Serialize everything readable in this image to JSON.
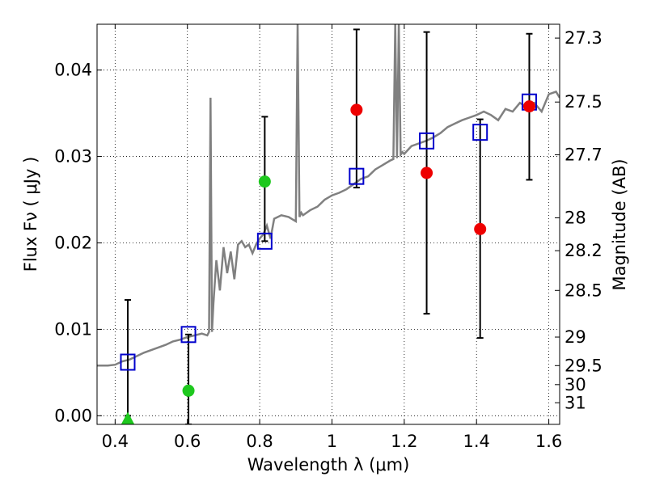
{
  "chart_data": {
    "type": "scatter",
    "xlabel": "Wavelength  λ (μm)",
    "ylabel": "Flux  Fν  ( μJy )",
    "y2label": "Magnitude (AB)",
    "xlim": [
      0.35,
      1.63
    ],
    "ylim": [
      -0.001,
      0.0453
    ],
    "grid": true,
    "x_ticks": [
      0.4,
      0.6,
      0.8,
      1.0,
      1.2,
      1.4,
      1.6
    ],
    "x_tick_labels": [
      "0.4",
      "0.6",
      "0.8",
      "1",
      "1.2",
      "1.4",
      "1.6"
    ],
    "y_ticks": [
      0.0,
      0.01,
      0.02,
      0.03,
      0.04
    ],
    "y_tick_labels": [
      "0.00",
      "0.01",
      "0.02",
      "0.03",
      "0.04"
    ],
    "mag_ticks": [
      {
        "label": "27.3",
        "flux": 0.0437
      },
      {
        "label": "27.5",
        "flux": 0.0363
      },
      {
        "label": "27.7",
        "flux": 0.0302
      },
      {
        "label": "28",
        "flux": 0.0229
      },
      {
        "label": "28.2",
        "flux": 0.0191
      },
      {
        "label": "28.5",
        "flux": 0.0145
      },
      {
        "label": "29",
        "flux": 0.0091
      },
      {
        "label": "29.5",
        "flux": 0.0058
      },
      {
        "label": "30",
        "flux": 0.0036
      },
      {
        "label": "31",
        "flux": 0.0015
      }
    ],
    "series": [
      {
        "type": "line",
        "color": "#808080",
        "x": [
          0.35,
          0.38,
          0.4,
          0.42,
          0.44,
          0.46,
          0.48,
          0.5,
          0.52,
          0.54,
          0.56,
          0.58,
          0.6,
          0.62,
          0.64,
          0.655,
          0.66,
          0.664,
          0.668,
          0.672,
          0.676,
          0.68,
          0.69,
          0.7,
          0.71,
          0.72,
          0.73,
          0.74,
          0.75,
          0.76,
          0.77,
          0.78,
          0.79,
          0.8,
          0.81,
          0.82,
          0.83,
          0.84,
          0.86,
          0.88,
          0.9,
          0.905,
          0.91,
          0.915,
          0.92,
          0.94,
          0.96,
          0.98,
          1.0,
          1.02,
          1.04,
          1.06,
          1.08,
          1.1,
          1.12,
          1.14,
          1.16,
          1.17,
          1.175,
          1.18,
          1.185,
          1.19,
          1.195,
          1.2,
          1.22,
          1.24,
          1.26,
          1.28,
          1.3,
          1.32,
          1.34,
          1.36,
          1.38,
          1.4,
          1.42,
          1.44,
          1.46,
          1.48,
          1.5,
          1.52,
          1.54,
          1.56,
          1.58,
          1.6,
          1.62,
          1.63
        ],
        "y": [
          0.0058,
          0.0058,
          0.0059,
          0.0063,
          0.0065,
          0.0069,
          0.0073,
          0.0076,
          0.0079,
          0.0082,
          0.0086,
          0.0088,
          0.0091,
          0.0093,
          0.0095,
          0.0093,
          0.0097,
          0.0368,
          0.0097,
          0.013,
          0.0155,
          0.018,
          0.0145,
          0.0195,
          0.0165,
          0.019,
          0.0158,
          0.0198,
          0.0202,
          0.0195,
          0.0198,
          0.0188,
          0.0198,
          0.0205,
          0.021,
          0.022,
          0.0205,
          0.0228,
          0.0232,
          0.023,
          0.0225,
          0.0453,
          0.023,
          0.0235,
          0.0232,
          0.0238,
          0.0242,
          0.025,
          0.0255,
          0.0258,
          0.0262,
          0.0268,
          0.0274,
          0.0277,
          0.0285,
          0.029,
          0.0295,
          0.0297,
          0.0453,
          0.0298,
          0.0453,
          0.0302,
          0.0305,
          0.0303,
          0.0312,
          0.0315,
          0.0318,
          0.0322,
          0.0327,
          0.0334,
          0.0338,
          0.0342,
          0.0345,
          0.0348,
          0.0352,
          0.0348,
          0.0342,
          0.0355,
          0.0352,
          0.0362,
          0.0357,
          0.0362,
          0.0352,
          0.0372,
          0.0375,
          0.0368
        ]
      },
      {
        "type": "errorbar",
        "color": "#000000",
        "points": [
          {
            "x": 0.435,
            "y": 0.0062,
            "lo": 0.0,
            "hi": 0.0134
          },
          {
            "x": 0.603,
            "y": 0.0094,
            "lo": -0.001,
            "hi": 0.0094
          },
          {
            "x": 0.814,
            "y": 0.0202,
            "lo": 0.0202,
            "hi": 0.0346
          },
          {
            "x": 1.068,
            "y": 0.0277,
            "lo": 0.0264,
            "hi": 0.0447
          },
          {
            "x": 1.262,
            "y": 0.0318,
            "lo": 0.0118,
            "hi": 0.0444
          },
          {
            "x": 1.41,
            "y": 0.0328,
            "lo": 0.009,
            "hi": 0.0343
          },
          {
            "x": 1.546,
            "y": 0.0363,
            "lo": 0.0273,
            "hi": 0.0442
          }
        ]
      },
      {
        "type": "scatter",
        "marker": "square-open",
        "color": "#0000cc",
        "x": [
          0.435,
          0.603,
          0.814,
          1.068,
          1.262,
          1.41,
          1.546
        ],
        "y": [
          0.0062,
          0.0094,
          0.0202,
          0.0277,
          0.0318,
          0.0328,
          0.0363
        ]
      },
      {
        "type": "scatter",
        "marker": "circle",
        "color": "#ee0000",
        "x": [
          1.068,
          1.262,
          1.41,
          1.546
        ],
        "y": [
          0.0354,
          0.0281,
          0.0216,
          0.0358
        ]
      },
      {
        "type": "scatter",
        "marker": "circle",
        "color": "#1ec81e",
        "x": [
          0.603,
          0.814
        ],
        "y": [
          0.0029,
          0.0271
        ]
      },
      {
        "type": "scatter",
        "marker": "triangle",
        "color": "#1ec81e",
        "x": [
          0.435
        ],
        "y": [
          -0.0002
        ]
      }
    ]
  }
}
